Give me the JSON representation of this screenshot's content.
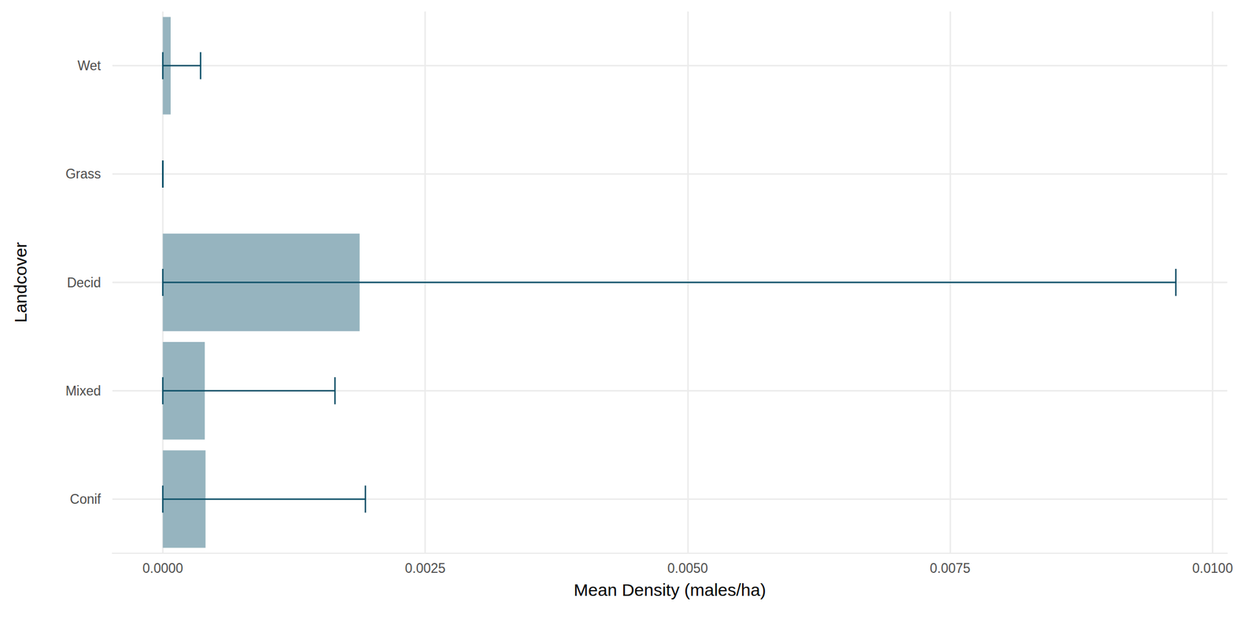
{
  "chart_data": {
    "type": "bar",
    "orientation": "horizontal",
    "categories": [
      "Conif",
      "Mixed",
      "Decid",
      "Grass",
      "Wet"
    ],
    "values": [
      0.000407,
      0.0004,
      0.001875,
      0,
      7.5e-05
    ],
    "error_low": [
      0,
      0,
      0,
      0,
      0
    ],
    "error_high": [
      0.00193,
      0.00164,
      0.00965,
      0,
      0.00036
    ],
    "color": "#96b4bf",
    "error_color": "#0d5068",
    "x_label": "Mean Density (males/ha)",
    "y_label": "Landcover",
    "xlim": [
      -0.00048,
      0.01014
    ],
    "xticks": [
      {
        "value": 0,
        "label": "0.0000"
      },
      {
        "value": 0.0025,
        "label": "0.0025"
      },
      {
        "value": 0.005,
        "label": "0.0050"
      },
      {
        "value": 0.0075,
        "label": "0.0075"
      },
      {
        "value": 0.01,
        "label": "0.0100"
      }
    ],
    "grid": true
  }
}
